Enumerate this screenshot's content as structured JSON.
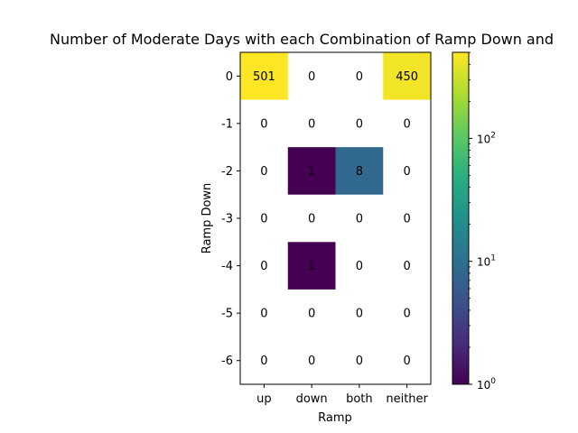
{
  "chart_data": {
    "type": "heatmap",
    "title": "Number of Moderate Days with each Combination of Ramp Down and",
    "xlabel": "Ramp",
    "ylabel": "Ramp Down",
    "x_categories": [
      "up",
      "down",
      "both",
      "neither"
    ],
    "y_categories": [
      "0",
      "-1",
      "-2",
      "-3",
      "-4",
      "-5",
      "-6"
    ],
    "values": [
      [
        501,
        0,
        0,
        450
      ],
      [
        0,
        0,
        0,
        0
      ],
      [
        0,
        1,
        8,
        0
      ],
      [
        0,
        0,
        0,
        0
      ],
      [
        0,
        1,
        0,
        0
      ],
      [
        0,
        0,
        0,
        0
      ],
      [
        0,
        0,
        0,
        0
      ]
    ],
    "colorscale": "viridis",
    "color_scale_type": "log",
    "zero_cells_blank": true,
    "colorbar": {
      "min": 1,
      "max": 501,
      "tick_values": [
        1,
        10,
        100
      ],
      "tick_labels": [
        {
          "base": "10",
          "exp": "0"
        },
        {
          "base": "10",
          "exp": "1"
        },
        {
          "base": "10",
          "exp": "2"
        }
      ]
    },
    "grid": false
  }
}
